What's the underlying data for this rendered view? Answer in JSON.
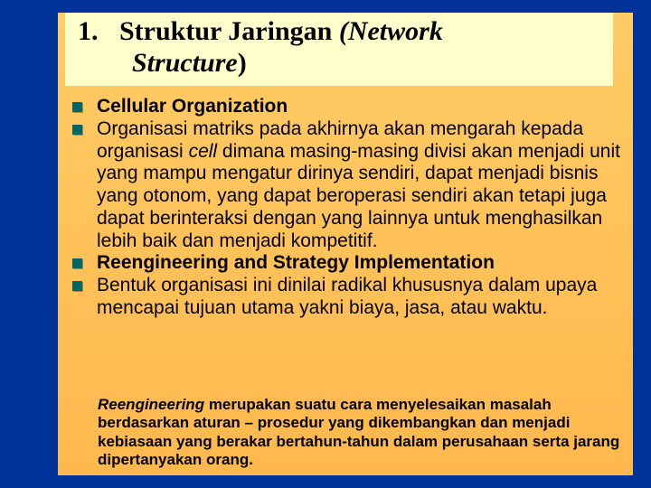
{
  "colors": {
    "page_bg": "#003399",
    "slide_bg_top": "#ffcc66",
    "slide_bg_bottom": "#ffb84d",
    "title_bg": "#ffffcc",
    "bullet": "#006666",
    "text": "#000000"
  },
  "typography": {
    "title_font": "Times New Roman",
    "title_fontsize": 30,
    "title_weight": "bold",
    "body_font": "Arial",
    "body_fontsize": 21,
    "footer_fontsize": 17
  },
  "title": {
    "number": "1.",
    "line1_plain": "Struktur Jaringan  ",
    "line1_italic": "(Network",
    "line2_italic": "Structure",
    "line2_plain": ")"
  },
  "items": [
    {
      "bold": "Cellular Organization"
    },
    {
      "pre": "Organisasi matriks pada akhirnya akan mengarah kepada organisasi ",
      "italic": "cell",
      "post": " dimana masing-masing divisi akan menjadi unit yang mampu mengatur dirinya sendiri, dapat menjadi bisnis yang otonom, yang dapat beroperasi sendiri akan tetapi juga dapat berinteraksi dengan yang lainnya untuk menghasilkan lebih baik dan menjadi kompetitif."
    },
    {
      "bold": "Reengineering and Strategy Implementation"
    },
    {
      "pre": "Bentuk organisasi ini dinilai radikal khususnya dalam upaya mencapai tujuan utama yakni biaya, jasa, atau waktu."
    }
  ],
  "footer": {
    "italic": "Reengineering",
    "text": " merupakan suatu cara menyelesaikan masalah berdasarkan aturan – prosedur yang dikembangkan dan menjadi kebiasaan yang berakar bertahun-tahun dalam perusahaan serta jarang dipertanyakan orang."
  }
}
